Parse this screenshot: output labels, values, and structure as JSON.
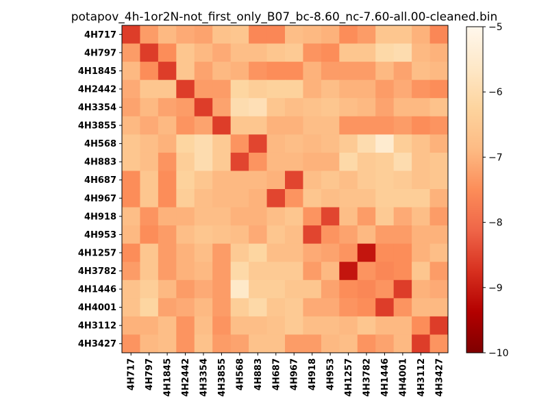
{
  "chart_data": {
    "type": "heatmap",
    "title": "potapov_4h-1or2N-not_first_only_B07_bc-8.60_nc-7.60-all.00-cleaned.bin",
    "row_labels": [
      "4H717",
      "4H797",
      "4H1845",
      "4H2442",
      "4H3354",
      "4H3855",
      "4H568",
      "4H883",
      "4H687",
      "4H967",
      "4H918",
      "4H953",
      "4H1257",
      "4H3782",
      "4H1446",
      "4H4001",
      "4H3112",
      "4H3427"
    ],
    "col_labels": [
      "4H717",
      "4H797",
      "4H1845",
      "4H2442",
      "4H3354",
      "4H3855",
      "4H568",
      "4H883",
      "4H687",
      "4H967",
      "4H918",
      "4H953",
      "4H1257",
      "4H3782",
      "4H1446",
      "4H4001",
      "4H3112",
      "4H3427"
    ],
    "values": [
      [
        -8.6,
        -7.3,
        -6.9,
        -7.1,
        -7.2,
        -6.7,
        -6.6,
        -7.6,
        -7.6,
        -6.8,
        -6.9,
        -7.0,
        -7.5,
        -7.3,
        -6.6,
        -6.6,
        -7.0,
        -7.6
      ],
      [
        -7.3,
        -8.6,
        -7.5,
        -6.6,
        -6.9,
        -7.1,
        -6.8,
        -6.8,
        -6.6,
        -6.5,
        -7.4,
        -7.5,
        -6.6,
        -6.6,
        -6.1,
        -6.0,
        -6.9,
        -7.0
      ],
      [
        -6.9,
        -7.5,
        -8.6,
        -6.6,
        -7.2,
        -6.9,
        -7.0,
        -7.4,
        -7.5,
        -7.5,
        -7.0,
        -7.3,
        -7.3,
        -7.3,
        -6.9,
        -7.2,
        -6.8,
        -6.9
      ],
      [
        -7.1,
        -6.6,
        -6.6,
        -8.6,
        -7.3,
        -7.3,
        -6.2,
        -6.4,
        -6.3,
        -6.3,
        -7.0,
        -6.8,
        -7.0,
        -7.0,
        -7.3,
        -7.1,
        -7.4,
        -7.5
      ],
      [
        -7.2,
        -6.9,
        -7.2,
        -7.3,
        -8.6,
        -7.2,
        -6.0,
        -5.9,
        -6.6,
        -6.8,
        -6.7,
        -6.6,
        -6.8,
        -6.9,
        -7.2,
        -6.9,
        -6.9,
        -6.7
      ],
      [
        -6.9,
        -7.1,
        -6.9,
        -7.4,
        -7.2,
        -8.6,
        -6.6,
        -6.6,
        -7.0,
        -7.0,
        -6.8,
        -6.8,
        -7.4,
        -7.4,
        -7.4,
        -7.3,
        -7.5,
        -7.4
      ],
      [
        -6.6,
        -6.8,
        -7.0,
        -6.2,
        -6.0,
        -6.5,
        -7.4,
        -8.5,
        -6.9,
        -6.8,
        -6.9,
        -6.8,
        -6.5,
        -6.0,
        -5.5,
        -6.4,
        -6.7,
        -7.0
      ],
      [
        -6.6,
        -6.8,
        -7.4,
        -6.4,
        -6.0,
        -6.5,
        -8.5,
        -7.4,
        -6.9,
        -6.9,
        -7.0,
        -7.0,
        -6.1,
        -6.5,
        -6.4,
        -6.0,
        -6.7,
        -6.6
      ],
      [
        -7.5,
        -6.6,
        -7.5,
        -6.3,
        -6.6,
        -6.9,
        -6.9,
        -6.9,
        -7.0,
        -8.5,
        -6.8,
        -6.6,
        -6.8,
        -6.5,
        -6.4,
        -6.5,
        -6.7,
        -6.6
      ],
      [
        -7.5,
        -6.6,
        -7.5,
        -6.4,
        -6.8,
        -6.9,
        -6.9,
        -7.0,
        -8.5,
        -7.4,
        -6.6,
        -6.8,
        -6.7,
        -6.7,
        -6.4,
        -6.4,
        -6.4,
        -7.0
      ],
      [
        -6.8,
        -7.4,
        -7.0,
        -7.0,
        -6.8,
        -6.8,
        -7.0,
        -7.0,
        -6.8,
        -6.6,
        -7.4,
        -8.5,
        -6.8,
        -7.3,
        -6.5,
        -7.1,
        -6.8,
        -7.3
      ],
      [
        -6.9,
        -7.5,
        -7.3,
        -6.8,
        -6.6,
        -6.7,
        -6.8,
        -7.1,
        -6.6,
        -6.8,
        -8.5,
        -7.4,
        -7.2,
        -6.9,
        -7.3,
        -7.3,
        -7.0,
        -7.0
      ],
      [
        -7.5,
        -6.6,
        -7.3,
        -7.0,
        -6.8,
        -7.3,
        -6.5,
        -6.2,
        -6.8,
        -6.8,
        -7.1,
        -7.2,
        -7.4,
        -9.1,
        -7.5,
        -7.5,
        -7.0,
        -6.8
      ],
      [
        -7.3,
        -6.6,
        -7.3,
        -7.0,
        -6.9,
        -7.3,
        -6.1,
        -6.5,
        -6.5,
        -6.5,
        -7.3,
        -6.9,
        -9.1,
        -7.4,
        -7.6,
        -7.5,
        -6.6,
        -7.3
      ],
      [
        -6.7,
        -6.4,
        -6.9,
        -7.3,
        -7.1,
        -7.3,
        -5.6,
        -6.4,
        -6.4,
        -6.6,
        -6.6,
        -7.2,
        -7.5,
        -7.6,
        -7.4,
        -8.6,
        -7.0,
        -7.1
      ],
      [
        -6.7,
        -6.2,
        -7.2,
        -7.1,
        -6.9,
        -7.3,
        -6.4,
        -6.1,
        -6.6,
        -6.5,
        -7.1,
        -7.1,
        -7.4,
        -7.5,
        -8.6,
        -7.4,
        -6.9,
        -6.9
      ],
      [
        -7.0,
        -7.0,
        -6.8,
        -7.4,
        -6.8,
        -7.4,
        -6.8,
        -6.8,
        -6.7,
        -6.5,
        -6.8,
        -6.8,
        -6.9,
        -6.6,
        -6.9,
        -6.9,
        -7.5,
        -8.6
      ],
      [
        -7.4,
        -6.9,
        -6.8,
        -7.4,
        -6.7,
        -7.3,
        -7.2,
        -6.7,
        -6.7,
        -7.3,
        -7.3,
        -6.9,
        -6.8,
        -7.4,
        -7.2,
        -6.9,
        -8.6,
        -7.4
      ]
    ],
    "colorbar": {
      "min": -10,
      "max": -5,
      "ticks": [
        -10,
        -9,
        -8,
        -7,
        -6,
        -5
      ],
      "tick_labels": [
        "−10",
        "−9",
        "−8",
        "−7",
        "−6",
        "−5"
      ]
    },
    "colormap": "OrRd_r",
    "colormap_stops": [
      "#7f0000",
      "#b30000",
      "#d7301f",
      "#ef6548",
      "#fc8d59",
      "#fdbb84",
      "#fdd49e",
      "#fee8c8",
      "#fff7ec"
    ],
    "grid": false
  }
}
